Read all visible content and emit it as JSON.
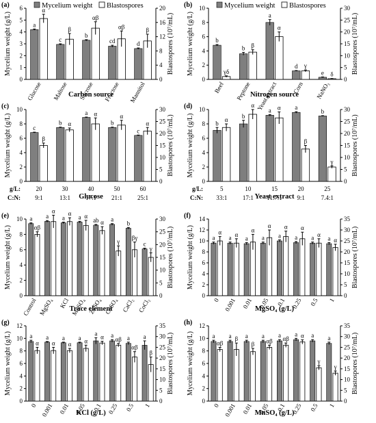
{
  "legend": {
    "mycelium": "Mycelium weight",
    "blasto": "Blastospores"
  },
  "colors": {
    "mycelium": "#7f7f7f",
    "blasto": "#ffffff",
    "axis": "#000000"
  },
  "chart_data": [
    {
      "panel": "(a)",
      "type": "bar",
      "title": "Carbon source",
      "ylabel": "Mycelium weight (g/L)",
      "y2label": "Blastospores (10⁷/mL)",
      "ylim": [
        0,
        6
      ],
      "yticks": [
        0,
        1,
        2,
        3,
        4,
        5,
        6
      ],
      "y2lim": [
        0,
        20
      ],
      "y2ticks": [
        0,
        4,
        8,
        12,
        16,
        20
      ],
      "categories": [
        "Glucose",
        "Maltose",
        "Sucrose",
        "Fructose",
        "Mannitol"
      ],
      "rotated": true,
      "showLegend": true,
      "series": [
        {
          "name": "Mycelium weight",
          "values": [
            4.2,
            2.95,
            3.3,
            2.8,
            2.6
          ],
          "errors": [
            0.05,
            0.05,
            0.05,
            0.08,
            0.05
          ],
          "labels": [
            "a",
            "c",
            "b",
            "cd",
            "d"
          ]
        },
        {
          "name": "Blastospores",
          "values": [
            17.1,
            11.3,
            14.4,
            11.4,
            10.8
          ],
          "errors": [
            1.2,
            1.6,
            1.8,
            2.2,
            1.9
          ],
          "labels": [
            "α",
            "β",
            "αβ",
            "αβ",
            "β"
          ]
        }
      ]
    },
    {
      "panel": "(b)",
      "type": "bar",
      "title": "Nitrogen source",
      "ylabel": "Mycelium weight (g/L)",
      "y2label": "Blastospores (10⁷/mL)",
      "ylim": [
        0,
        10
      ],
      "yticks": [
        0,
        2,
        4,
        6,
        8,
        10
      ],
      "y2lim": [
        0,
        30
      ],
      "y2ticks": [
        0,
        5,
        10,
        15,
        20,
        25,
        30
      ],
      "categories": [
        "Beef",
        "Peptone",
        "Yeast extract",
        "Corn",
        "NaNO₃"
      ],
      "rotated": true,
      "showLegend": true,
      "series": [
        {
          "name": "Mycelium weight",
          "values": [
            4.8,
            3.6,
            8.0,
            1.2,
            0.3
          ],
          "errors": [
            0.1,
            0.2,
            0.4,
            0.05,
            0.05
          ],
          "labels": [
            "b",
            "b",
            "a",
            "d",
            "e"
          ]
        },
        {
          "name": "Blastospores",
          "values": [
            1.2,
            11.5,
            18.0,
            3.6,
            0.3
          ],
          "errors": [
            0.3,
            1.0,
            2.0,
            0.4,
            0.1
          ],
          "labels": [
            "γδ",
            "β",
            "α",
            "γ",
            "δ"
          ]
        }
      ]
    },
    {
      "panel": "(c)",
      "type": "bar",
      "title": "Glucose",
      "ylabel": "Mycelium weight (g/L)",
      "y2label": "Blastospores (10⁷/mL)",
      "ylim": [
        0,
        10
      ],
      "yticks": [
        0,
        2,
        4,
        6,
        8,
        10
      ],
      "y2lim": [
        0,
        30
      ],
      "y2ticks": [
        0,
        5,
        10,
        15,
        20,
        25,
        30
      ],
      "categories": [
        "20",
        "30",
        "40",
        "50",
        "60"
      ],
      "rowlabels": [
        {
          "head": "g/L:",
          "values": [
            "20",
            "30",
            "40",
            "50",
            "60"
          ]
        },
        {
          "head": "C:N:",
          "values": [
            "9:1",
            "13:1",
            "17:1",
            "21:1",
            "25:1"
          ]
        }
      ],
      "series": [
        {
          "name": "Mycelium weight",
          "values": [
            6.8,
            7.5,
            8.9,
            7.5,
            6.4
          ],
          "errors": [
            0.05,
            0.05,
            0.05,
            0.05,
            0.05
          ],
          "labels": [
            "c",
            "b",
            "a",
            "b",
            "c"
          ]
        },
        {
          "name": "Blastospores",
          "values": [
            15.0,
            21.5,
            24.0,
            23.5,
            21.0
          ],
          "errors": [
            1.0,
            0.8,
            2.5,
            2.0,
            1.5
          ],
          "labels": [
            "β",
            "α",
            "α",
            "α",
            "α"
          ]
        }
      ]
    },
    {
      "panel": "(d)",
      "type": "bar",
      "title": "Yeast extract",
      "ylabel": "Mycelium weight (g/L)",
      "y2label": "Blastospores (10⁷/mL)",
      "ylim": [
        0,
        10
      ],
      "yticks": [
        0,
        2,
        4,
        6,
        8,
        10
      ],
      "y2lim": [
        0,
        30
      ],
      "y2ticks": [
        0,
        5,
        10,
        15,
        20,
        25,
        30
      ],
      "categories": [
        "5",
        "10",
        "15",
        "20",
        "25"
      ],
      "rowlabels": [
        {
          "head": "g/L:",
          "values": [
            "5",
            "10",
            "15",
            "20",
            "25"
          ]
        },
        {
          "head": "C:N:",
          "values": [
            "33:1",
            "17:1",
            "11.7:1",
            "9:1",
            "7.4:1"
          ]
        }
      ],
      "series": [
        {
          "name": "Mycelium weight",
          "values": [
            7.1,
            8.0,
            9.2,
            9.6,
            9.1
          ],
          "errors": [
            0.4,
            0.5,
            0.1,
            0.1,
            0.05
          ],
          "labels": [
            "b",
            "b",
            "a",
            "a",
            "b"
          ]
        },
        {
          "name": "Blastospores",
          "values": [
            22.5,
            28.0,
            26.5,
            13.5,
            6.0
          ],
          "errors": [
            1.5,
            2.0,
            2.5,
            1.5,
            0.5
          ],
          "labels": [
            "α",
            "α",
            "α",
            "β",
            "γ"
          ]
        }
      ]
    },
    {
      "panel": "(e)",
      "type": "bar",
      "title": "Trace element",
      "ylabel": "Mycelium weight (g/L)",
      "y2label": "Blastospores (10⁷/mL)",
      "ylim": [
        0,
        10
      ],
      "yticks": [
        0,
        2,
        4,
        6,
        8,
        10
      ],
      "y2lim": [
        0,
        30
      ],
      "y2ticks": [
        0,
        5,
        10,
        15,
        20,
        25,
        30
      ],
      "categories": [
        "Control",
        "MgSO₄",
        "KCl",
        "MnSO₄",
        "ZnSO₄",
        "CuSO₄",
        "CaCl₂",
        "CoCl₂"
      ],
      "rotated": true,
      "series": [
        {
          "name": "Mycelium weight",
          "values": [
            9.4,
            9.7,
            9.5,
            9.6,
            9.2,
            9.3,
            8.8,
            6.1
          ],
          "errors": [
            0.1,
            0.1,
            0.1,
            0.1,
            0.1,
            0.1,
            0.1,
            0.1
          ],
          "labels": [
            "a",
            "a",
            "a",
            "a",
            "ab",
            "a",
            "b",
            "c"
          ]
        },
        {
          "name": "Blastospores",
          "values": [
            24.0,
            29.0,
            29.0,
            27.5,
            25.5,
            17.5,
            18.0,
            15.0
          ],
          "errors": [
            1.0,
            2.5,
            1.5,
            2.0,
            1.5,
            2.0,
            3.0,
            1.8
          ],
          "labels": [
            "αβ",
            "α",
            "α",
            "α",
            "α",
            "γ",
            "βγ",
            "γ"
          ]
        }
      ]
    },
    {
      "panel": "(f)",
      "type": "bar",
      "title": "MgSO₄ (g/L)",
      "ylabel": "Mycelium weight (g/L)",
      "y2label": "Blastospores (10⁷/mL)",
      "ylim": [
        0,
        14
      ],
      "yticks": [
        0,
        2,
        4,
        6,
        8,
        10,
        12,
        14
      ],
      "y2lim": [
        0,
        35
      ],
      "y2ticks": [
        0,
        5,
        10,
        15,
        20,
        25,
        30,
        35
      ],
      "categories": [
        "0",
        "0.001",
        "0.01",
        "0.05",
        "0.1",
        "0.25",
        "0.5",
        "1"
      ],
      "rotated": true,
      "series": [
        {
          "name": "Mycelium weight",
          "values": [
            9.6,
            9.6,
            9.5,
            9.6,
            10.0,
            9.7,
            9.6,
            9.5
          ],
          "errors": [
            0.2,
            0.2,
            0.2,
            0.2,
            0.2,
            0.2,
            0.2,
            0.2
          ],
          "labels": [
            "a",
            "a",
            "a",
            "a",
            "a",
            "a",
            "a",
            "a"
          ]
        },
        {
          "name": "Blastospores",
          "values": [
            25.0,
            24.0,
            24.5,
            26.5,
            27.0,
            26.0,
            24.0,
            22.0
          ],
          "errors": [
            2.0,
            2.0,
            3.5,
            3.5,
            2.5,
            3.0,
            2.0,
            1.5
          ],
          "labels": [
            "α",
            "α",
            "α",
            "α",
            "α",
            "α",
            "α",
            "α"
          ]
        }
      ]
    },
    {
      "panel": "(g)",
      "type": "bar",
      "title": "KCl (g/L)",
      "ylabel": "Mycelium weight (g/L)",
      "y2label": "Blastospores (10⁷/mL)",
      "ylim": [
        0,
        12
      ],
      "yticks": [
        0,
        2,
        4,
        6,
        8,
        10,
        12
      ],
      "y2lim": [
        0,
        35
      ],
      "y2ticks": [
        0,
        5,
        10,
        15,
        20,
        25,
        30,
        35
      ],
      "categories": [
        "0",
        "0.001",
        "0.01",
        "0.05",
        "0.1",
        "0.25",
        "0.5",
        "1"
      ],
      "rotated": true,
      "series": [
        {
          "name": "Mycelium weight",
          "values": [
            9.5,
            9.4,
            9.3,
            9.3,
            9.6,
            9.6,
            9.2,
            8.9
          ],
          "errors": [
            0.2,
            0.1,
            0.1,
            0.1,
            0.5,
            0.2,
            0.2,
            0.7
          ],
          "labels": [
            "a",
            "a",
            "a",
            "a",
            "a",
            "a",
            "a",
            "a"
          ]
        },
        {
          "name": "Blastospores",
          "values": [
            23.5,
            23.5,
            23.5,
            24.5,
            27.0,
            26.0,
            20.5,
            17.0
          ],
          "errors": [
            1.5,
            1.5,
            1.0,
            1.5,
            0.8,
            0.8,
            2.5,
            3.5
          ],
          "labels": [
            "α",
            "α",
            "α",
            "α",
            "α",
            "αβ",
            "αβ",
            "β"
          ]
        }
      ]
    },
    {
      "panel": "(h)",
      "type": "bar",
      "title": "MnSO₄ (g/L)",
      "ylabel": "Mycelium weight (g/L)",
      "y2label": "Blastospores (10⁷/mL)",
      "ylim": [
        0,
        12
      ],
      "yticks": [
        0,
        2,
        4,
        6,
        8,
        10,
        12
      ],
      "y2lim": [
        0,
        35
      ],
      "y2ticks": [
        0,
        5,
        10,
        15,
        20,
        25,
        30,
        35
      ],
      "categories": [
        "0",
        "0.001",
        "0.01",
        "0.05",
        "0.1",
        "0.25",
        "0.5",
        "1"
      ],
      "rotated": true,
      "series": [
        {
          "name": "Mycelium weight",
          "values": [
            9.5,
            9.5,
            9.5,
            9.5,
            9.6,
            9.8,
            9.6,
            9.2
          ],
          "errors": [
            0.2,
            0.2,
            0.2,
            0.2,
            0.2,
            0.2,
            0.2,
            0.2
          ],
          "labels": [
            "a",
            "a",
            "a",
            "a",
            "a",
            "a",
            "a",
            "a"
          ]
        },
        {
          "name": "Blastospores",
          "values": [
            24.0,
            24.0,
            23.0,
            25.0,
            26.0,
            27.5,
            15.5,
            13.0
          ],
          "errors": [
            1.0,
            3.0,
            1.5,
            1.0,
            1.0,
            1.0,
            1.0,
            1.0
          ],
          "labels": [
            "αβ",
            "β",
            "β",
            "αβ",
            "αβ",
            "α",
            "γ",
            "γ"
          ]
        }
      ]
    }
  ]
}
